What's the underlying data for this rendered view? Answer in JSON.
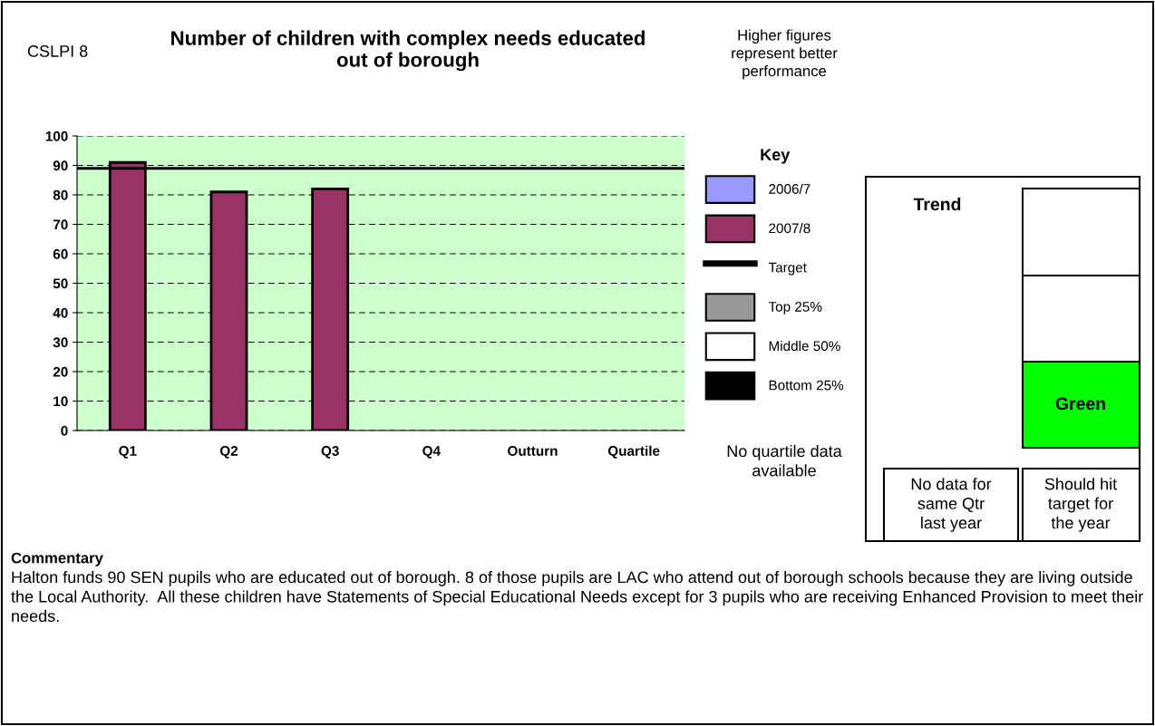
{
  "chart_data": {
    "type": "bar",
    "title": "Number of children with complex needs educated\nout of borough",
    "legend_title": "Key",
    "categories": [
      "Q1",
      "Q2",
      "Q3",
      "Q4",
      "Outturn",
      "Quartile"
    ],
    "series": [
      {
        "name": "2006/7",
        "color": "#9999ff",
        "values": [
          null,
          null,
          null,
          null,
          null,
          null
        ]
      },
      {
        "name": "2007/8",
        "color": "#993366",
        "values": [
          91,
          81,
          82,
          null,
          null,
          null
        ]
      },
      {
        "name": "Top 25%",
        "color": "#999999",
        "values": [
          null,
          null,
          null,
          null,
          null,
          null
        ]
      },
      {
        "name": "Middle 50%",
        "color": "#ffffff",
        "values": [
          null,
          null,
          null,
          null,
          null,
          null
        ]
      },
      {
        "name": "Bottom 25%",
        "color": "#000000",
        "values": [
          null,
          null,
          null,
          null,
          null,
          null
        ]
      }
    ],
    "ref_lines": [
      {
        "axis": "y",
        "value": 89,
        "label": "Target",
        "color": "#000000"
      }
    ],
    "ylim": [
      0,
      100
    ],
    "yticks": [
      0,
      10,
      20,
      30,
      40,
      50,
      60,
      70,
      80,
      90,
      100
    ],
    "grid": "y",
    "legend": "right",
    "annotations": [
      "CSLPI 8",
      "Higher figures\nrepresent better\nperformance",
      "No quartile data\navailable",
      "Trend",
      "Green",
      "No data for\nsame Qtr\nlast year",
      "Should hit\ntarget for\nthe year",
      "Commentary",
      "Halton funds 90 SEN pupils who are educated out of borough. 8 of those pupils are LAC who attend out of borough schools because they are living outside the Local Authority.  All these children have Statements of Special Educational Needs except for 3 pupils who are receiving Enhanced Provision to meet their needs."
    ]
  }
}
